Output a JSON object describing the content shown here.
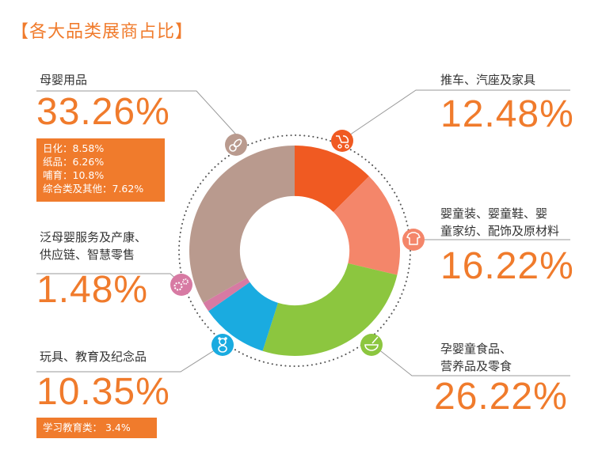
{
  "page": {
    "title": "【各大品类展商占比】"
  },
  "chart_data": {
    "type": "pie",
    "title": "【各大品类展商占比】",
    "series": [
      {
        "name": "推车、汽座及家具",
        "value": 12.48,
        "label": "12.48%",
        "color": "#f05a22",
        "icon": "stroller-icon"
      },
      {
        "name": "婴童装、婴童鞋、婴童家纺、配饰及原材料",
        "name_lines": [
          "婴童装、婴童鞋、婴",
          "童家纺、配饰及原材料"
        ],
        "value": 16.22,
        "label": "16.22%",
        "color": "#f4866a",
        "icon": "baby-clothes-icon"
      },
      {
        "name": "孕婴童食品、营养品及零食",
        "name_lines": [
          "孕婴童食品、",
          "营养品及零食"
        ],
        "value": 26.22,
        "label": "26.22%",
        "color": "#8cc63f",
        "icon": "food-bowl-icon"
      },
      {
        "name": "玩具、教育及纪念品",
        "value": 10.35,
        "label": "10.35%",
        "color": "#1aabe0",
        "icon": "teddy-bear-icon",
        "sub_items": [
          "学习教育类： 3.4%"
        ]
      },
      {
        "name": "泛母婴服务及产康、供应链、智慧零售",
        "name_lines": [
          "泛母婴服务及产康、",
          "供应链、智慧零售"
        ],
        "value": 1.48,
        "label": "1.48%",
        "color": "#d77aa3",
        "icon": "gears-icon"
      },
      {
        "name": "母婴用品",
        "value": 33.26,
        "label": "33.26%",
        "color": "#b99a8e",
        "icon": "pacifier-icon",
        "sub_items": [
          "日化：8.58%",
          "纸品：6.26%",
          "哺育：10.8%",
          "综合类及其他：7.62%"
        ]
      }
    ],
    "inner_radius_ratio": 0.52,
    "start_angle_deg": 0,
    "direction": "clockwise",
    "legend": "none",
    "connector_color": "#8c8c8c"
  }
}
